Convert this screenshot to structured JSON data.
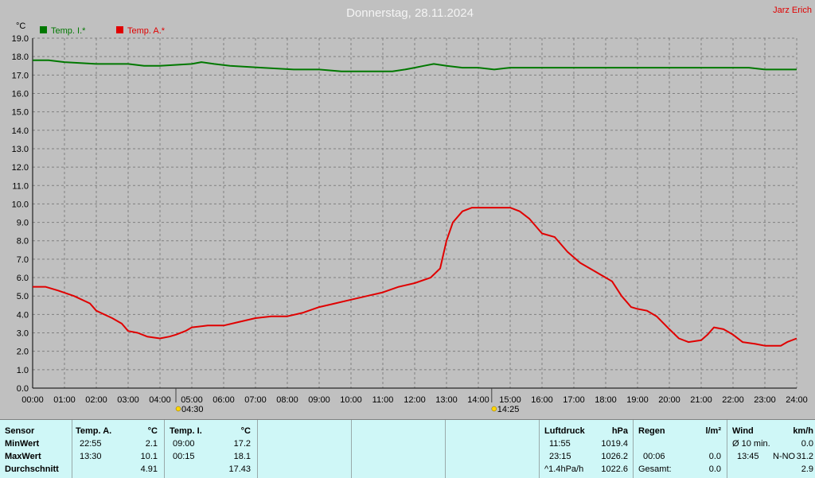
{
  "title": "Donnerstag, 28.11.2024",
  "author": "Jarz Erich",
  "colors": {
    "inside": "#007800",
    "outside": "#e00000",
    "background": "#c0c0c0",
    "panel": "#cff7f7"
  },
  "chart_data": {
    "type": "line",
    "ylabel": "°C",
    "ylim": [
      0,
      19
    ],
    "xlim": [
      0,
      24
    ],
    "grid": true,
    "legend_position": "top-left",
    "y_ticks": [
      "0.0",
      "1.0",
      "2.0",
      "3.0",
      "4.0",
      "5.0",
      "6.0",
      "7.0",
      "8.0",
      "9.0",
      "10.0",
      "11.0",
      "12.0",
      "13.0",
      "14.0",
      "15.0",
      "16.0",
      "17.0",
      "18.0",
      "19.0"
    ],
    "x_ticks": [
      "00:00",
      "01:00",
      "02:00",
      "03:00",
      "04:00",
      "05:00",
      "06:00",
      "07:00",
      "08:00",
      "09:00",
      "10:00",
      "11:00",
      "12:00",
      "13:00",
      "14:00",
      "15:00",
      "16:00",
      "17:00",
      "18:00",
      "19:00",
      "20:00",
      "21:00",
      "22:00",
      "23:00",
      "24:00"
    ],
    "markers": [
      {
        "time": 4.5,
        "label": "04:30",
        "icon": "sunrise-icon"
      },
      {
        "time": 14.42,
        "label": "14:25",
        "icon": "sunset-icon"
      }
    ],
    "series": [
      {
        "name": "Temp. I.*",
        "color": "#007800",
        "x": [
          0,
          0.2,
          0.5,
          1.0,
          2.0,
          3.0,
          3.5,
          4.0,
          5.0,
          5.3,
          5.7,
          6.2,
          7.2,
          8.2,
          9.0,
          9.7,
          10.2,
          10.7,
          11.3,
          11.7,
          12.0,
          12.3,
          12.6,
          13.0,
          13.5,
          14.0,
          14.5,
          15.0,
          16.0,
          17.0,
          18.0,
          19.0,
          20.0,
          21.0,
          22.0,
          22.5,
          23.0,
          24.0
        ],
        "y": [
          17.8,
          17.8,
          17.8,
          17.7,
          17.6,
          17.6,
          17.5,
          17.5,
          17.6,
          17.7,
          17.6,
          17.5,
          17.4,
          17.3,
          17.3,
          17.2,
          17.2,
          17.2,
          17.2,
          17.3,
          17.4,
          17.5,
          17.6,
          17.5,
          17.4,
          17.4,
          17.3,
          17.4,
          17.4,
          17.4,
          17.4,
          17.4,
          17.4,
          17.4,
          17.4,
          17.4,
          17.3,
          17.3
        ]
      },
      {
        "name": "Temp. A.*",
        "color": "#e00000",
        "x": [
          0,
          0.4,
          0.8,
          1.3,
          1.8,
          2.0,
          2.5,
          2.8,
          3.0,
          3.3,
          3.6,
          4.0,
          4.3,
          4.5,
          4.8,
          5.0,
          5.5,
          5.8,
          6.0,
          6.5,
          7.0,
          7.5,
          8.0,
          8.5,
          9.0,
          9.5,
          10.0,
          10.5,
          11.0,
          11.5,
          12.0,
          12.5,
          12.8,
          13.0,
          13.2,
          13.5,
          13.8,
          14.0,
          14.5,
          15.0,
          15.3,
          15.6,
          16.0,
          16.4,
          16.8,
          17.2,
          17.6,
          17.9,
          18.2,
          18.5,
          18.8,
          19.0,
          19.3,
          19.6,
          20.0,
          20.3,
          20.6,
          21.0,
          21.2,
          21.4,
          21.7,
          22.0,
          22.3,
          22.7,
          23.0,
          23.5,
          23.7,
          24.0
        ],
        "y": [
          5.5,
          5.5,
          5.3,
          5.0,
          4.6,
          4.2,
          3.8,
          3.5,
          3.1,
          3.0,
          2.8,
          2.7,
          2.8,
          2.9,
          3.1,
          3.3,
          3.4,
          3.4,
          3.4,
          3.6,
          3.8,
          3.9,
          3.9,
          4.1,
          4.4,
          4.6,
          4.8,
          5.0,
          5.2,
          5.5,
          5.7,
          6.0,
          6.5,
          8.0,
          9.0,
          9.6,
          9.8,
          9.8,
          9.8,
          9.8,
          9.6,
          9.2,
          8.4,
          8.2,
          7.4,
          6.8,
          6.4,
          6.1,
          5.8,
          5.0,
          4.4,
          4.3,
          4.2,
          3.9,
          3.2,
          2.7,
          2.5,
          2.6,
          2.9,
          3.3,
          3.2,
          2.9,
          2.5,
          2.4,
          2.3,
          2.3,
          2.5,
          2.7
        ]
      }
    ]
  },
  "stats": {
    "rows": [
      "MinWert",
      "MaxWert",
      "Durchschnitt"
    ],
    "sensor": {
      "header": "Sensor"
    },
    "temp_a": {
      "header": "Temp. A.",
      "unit": "°C",
      "min_time": "22:55",
      "min": "2.1",
      "max_time": "13:30",
      "max": "10.1",
      "avg": "4.91"
    },
    "temp_i": {
      "header": "Temp. I.",
      "unit": "°C",
      "min_time": "09:00",
      "min": "17.2",
      "max_time": "00:15",
      "max": "18.1",
      "avg": "17.43"
    },
    "pressure": {
      "header": "Luftdruck",
      "unit": "hPa",
      "min_time": "11:55",
      "min": "1019.4",
      "max_time": "23:15",
      "max": "1026.2",
      "avg_label": "^1.4hPa/h",
      "avg": "1022.6"
    },
    "rain": {
      "header": "Regen",
      "unit": "l/m²",
      "max_time": "00:06",
      "max": "0.0",
      "total_label": "Gesamt:",
      "total": "0.0"
    },
    "wind": {
      "header": "Wind",
      "unit": "km/h",
      "avg_label": "Ø 10 min.",
      "avg": "0.0",
      "max_time": "13:45",
      "max_dir": "N-NO",
      "max": "31.2",
      "last": "2.9"
    }
  }
}
